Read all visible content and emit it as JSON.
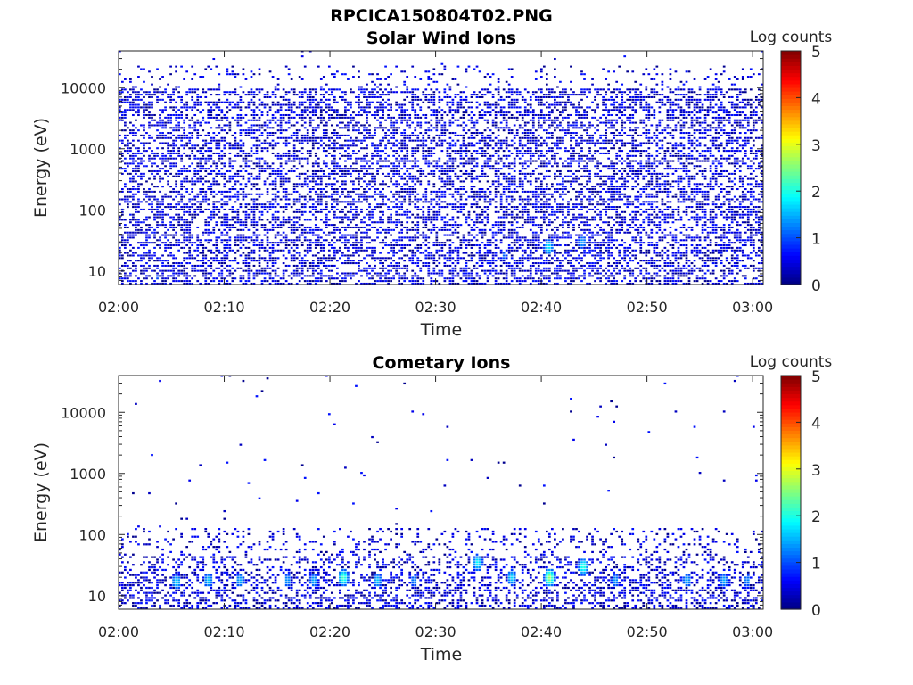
{
  "figure": {
    "title": "RPCICA150804T02.PNG"
  },
  "chart_data": [
    {
      "type": "heatmap",
      "title": "Solar Wind Ions",
      "xlabel": "Time",
      "ylabel": "Energy (eV)",
      "x_ticks": [
        "02:00",
        "02:10",
        "02:20",
        "02:30",
        "02:40",
        "02:50",
        "03:00"
      ],
      "x_range_minutes": [
        0,
        61
      ],
      "y_scale": "log",
      "y_ticks": [
        "10",
        "100",
        "1000",
        "10000"
      ],
      "y_range": [
        6,
        40000
      ],
      "colorbar": {
        "label": "Log counts",
        "range": [
          0,
          5
        ],
        "ticks": [
          "0",
          "1",
          "2",
          "3",
          "4",
          "5"
        ],
        "colormap": "jet"
      },
      "pattern": "dense",
      "hotspots": [
        {
          "time_min": 40.7,
          "energy_ev": 25,
          "log_counts": 1.8
        },
        {
          "time_min": 43.9,
          "energy_ev": 30,
          "log_counts": 1.4
        },
        {
          "time_min": 36.5,
          "energy_ev": 18,
          "log_counts": 1.1
        },
        {
          "time_min": 3.6,
          "energy_ev": 8,
          "log_counts": 1.0
        }
      ]
    },
    {
      "type": "heatmap",
      "title": "Cometary Ions",
      "xlabel": "Time",
      "ylabel": "Energy (eV)",
      "x_ticks": [
        "02:00",
        "02:10",
        "02:20",
        "02:30",
        "02:40",
        "02:50",
        "03:00"
      ],
      "x_range_minutes": [
        0,
        61
      ],
      "y_scale": "log",
      "y_ticks": [
        "10",
        "100",
        "1000",
        "10000"
      ],
      "y_range": [
        6,
        40000
      ],
      "colorbar": {
        "label": "Log counts",
        "range": [
          0,
          5
        ],
        "ticks": [
          "0",
          "1",
          "2",
          "3",
          "4",
          "5"
        ],
        "colormap": "jet"
      },
      "pattern": "sparse",
      "hotspots": [
        {
          "time_min": 5.5,
          "energy_ev": 17,
          "log_counts": 1.7
        },
        {
          "time_min": 8.5,
          "energy_ev": 18,
          "log_counts": 1.6
        },
        {
          "time_min": 11.5,
          "energy_ev": 18,
          "log_counts": 1.5
        },
        {
          "time_min": 16.0,
          "energy_ev": 18,
          "log_counts": 1.4
        },
        {
          "time_min": 18.5,
          "energy_ev": 18,
          "log_counts": 1.5
        },
        {
          "time_min": 21.3,
          "energy_ev": 20,
          "log_counts": 2.2
        },
        {
          "time_min": 24.5,
          "energy_ev": 18,
          "log_counts": 1.6
        },
        {
          "time_min": 28.0,
          "energy_ev": 18,
          "log_counts": 1.3
        },
        {
          "time_min": 34.0,
          "energy_ev": 35,
          "log_counts": 1.9
        },
        {
          "time_min": 37.2,
          "energy_ev": 20,
          "log_counts": 1.7
        },
        {
          "time_min": 40.8,
          "energy_ev": 20,
          "log_counts": 2.6
        },
        {
          "time_min": 44.0,
          "energy_ev": 30,
          "log_counts": 2.1
        },
        {
          "time_min": 47.0,
          "energy_ev": 18,
          "log_counts": 1.4
        },
        {
          "time_min": 53.8,
          "energy_ev": 18,
          "log_counts": 1.5
        },
        {
          "time_min": 57.3,
          "energy_ev": 18,
          "log_counts": 1.5
        },
        {
          "time_min": 59.5,
          "energy_ev": 18,
          "log_counts": 1.3
        }
      ]
    }
  ]
}
